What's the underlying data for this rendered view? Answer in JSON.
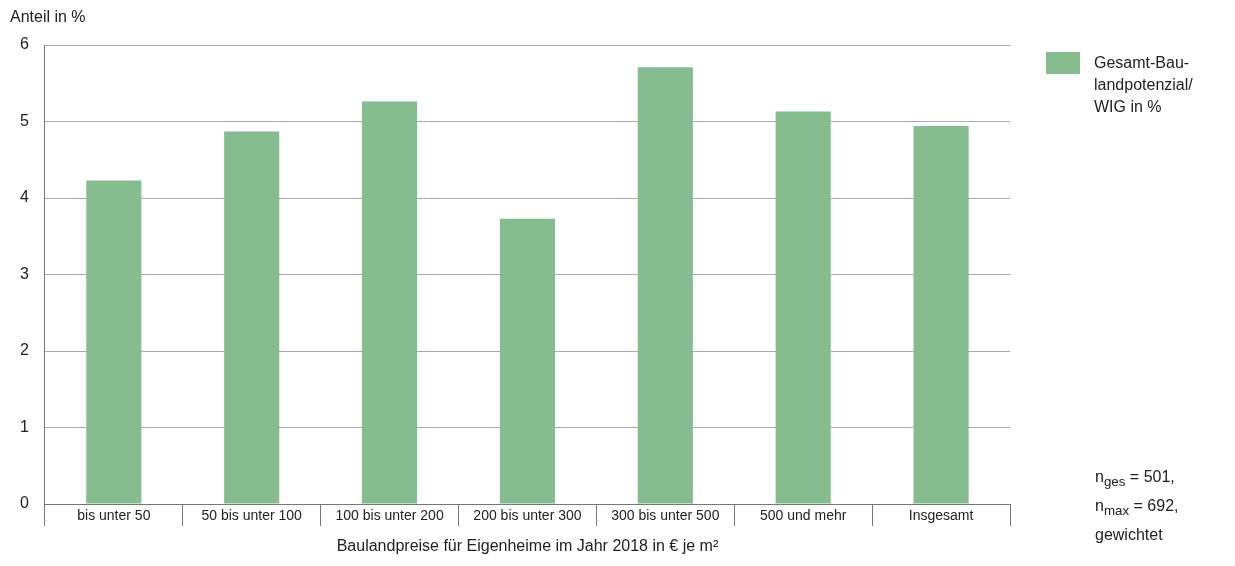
{
  "chart_data": {
    "type": "bar",
    "ylabel": "Anteil in %",
    "xlabel": "Baulandpreise für Eigenheime im Jahr 2018 in € je m²",
    "categories": [
      "bis unter 50",
      "50 bis unter 100",
      "100 bis unter 200",
      "200 bis unter 300",
      "300 bis unter 500",
      "500 und mehr",
      "Insgesamt"
    ],
    "series": [
      {
        "name": "Gesamt-Bau-\nlandpotenzial/\nWIG in %",
        "color": "#86bd8f",
        "values": [
          4.23,
          4.87,
          5.26,
          3.73,
          5.71,
          5.13,
          4.94
        ]
      }
    ],
    "ylim": [
      0,
      6
    ],
    "yticks": [
      0,
      1,
      2,
      3,
      4,
      5,
      6
    ],
    "grid": "y",
    "legend": "top right",
    "annotations": [
      "n$_{ges}$ = 501,",
      "n$_{max}$ = 692,",
      "gewichtet"
    ]
  }
}
